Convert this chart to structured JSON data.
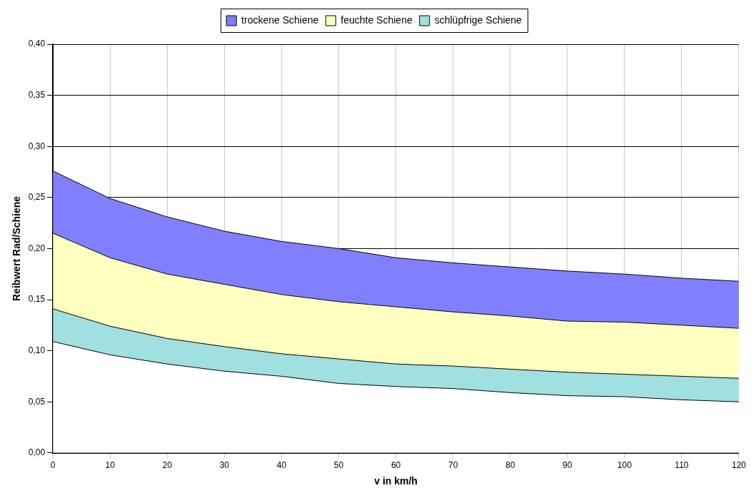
{
  "chart_data": {
    "type": "area",
    "stacked": true,
    "xlabel": "v in km/h",
    "ylabel": "Reibwert Rad/Schiene",
    "x": [
      0,
      10,
      20,
      30,
      40,
      50,
      60,
      70,
      80,
      90,
      100,
      110,
      120
    ],
    "series": [
      {
        "color": "#ffffff",
        "values": [
          0.109,
          0.096,
          0.087,
          0.08,
          0.075,
          0.068,
          0.065,
          0.063,
          0.059,
          0.056,
          0.055,
          0.052,
          0.05
        ]
      },
      {
        "name": "schlüpfrige Schiene",
        "color": "#a0e0e0",
        "values": [
          0.032,
          0.028,
          0.025,
          0.024,
          0.022,
          0.024,
          0.022,
          0.022,
          0.023,
          0.023,
          0.022,
          0.023,
          0.023
        ]
      },
      {
        "name": "feuchte Schiene",
        "color": "#ffffc0",
        "values": [
          0.074,
          0.067,
          0.063,
          0.061,
          0.058,
          0.056,
          0.056,
          0.053,
          0.052,
          0.05,
          0.051,
          0.05,
          0.049
        ]
      },
      {
        "name": "trockene Schiene",
        "color": "#8080ff",
        "values": [
          0.061,
          0.058,
          0.056,
          0.052,
          0.052,
          0.052,
          0.048,
          0.048,
          0.048,
          0.049,
          0.047,
          0.046,
          0.046
        ]
      }
    ],
    "xlim": [
      0,
      120
    ],
    "xticks": [
      0,
      10,
      20,
      30,
      40,
      50,
      60,
      70,
      80,
      90,
      100,
      110,
      120
    ],
    "ylim": [
      0,
      0.4
    ],
    "yticks": [
      {
        "value": 0,
        "label": "0,00"
      },
      {
        "value": 0.05,
        "label": "0,05"
      },
      {
        "value": 0.1,
        "label": "0,10"
      },
      {
        "value": 0.15,
        "label": "0,15"
      },
      {
        "value": 0.2,
        "label": "0,20"
      },
      {
        "value": 0.25,
        "label": "0,25"
      },
      {
        "value": 0.3,
        "label": "0,30"
      },
      {
        "value": 0.35,
        "label": "0,35"
      },
      {
        "value": 0.4,
        "label": "0,40"
      }
    ],
    "grid": true,
    "legend": "top",
    "marker": "none",
    "line_style": "solid"
  }
}
